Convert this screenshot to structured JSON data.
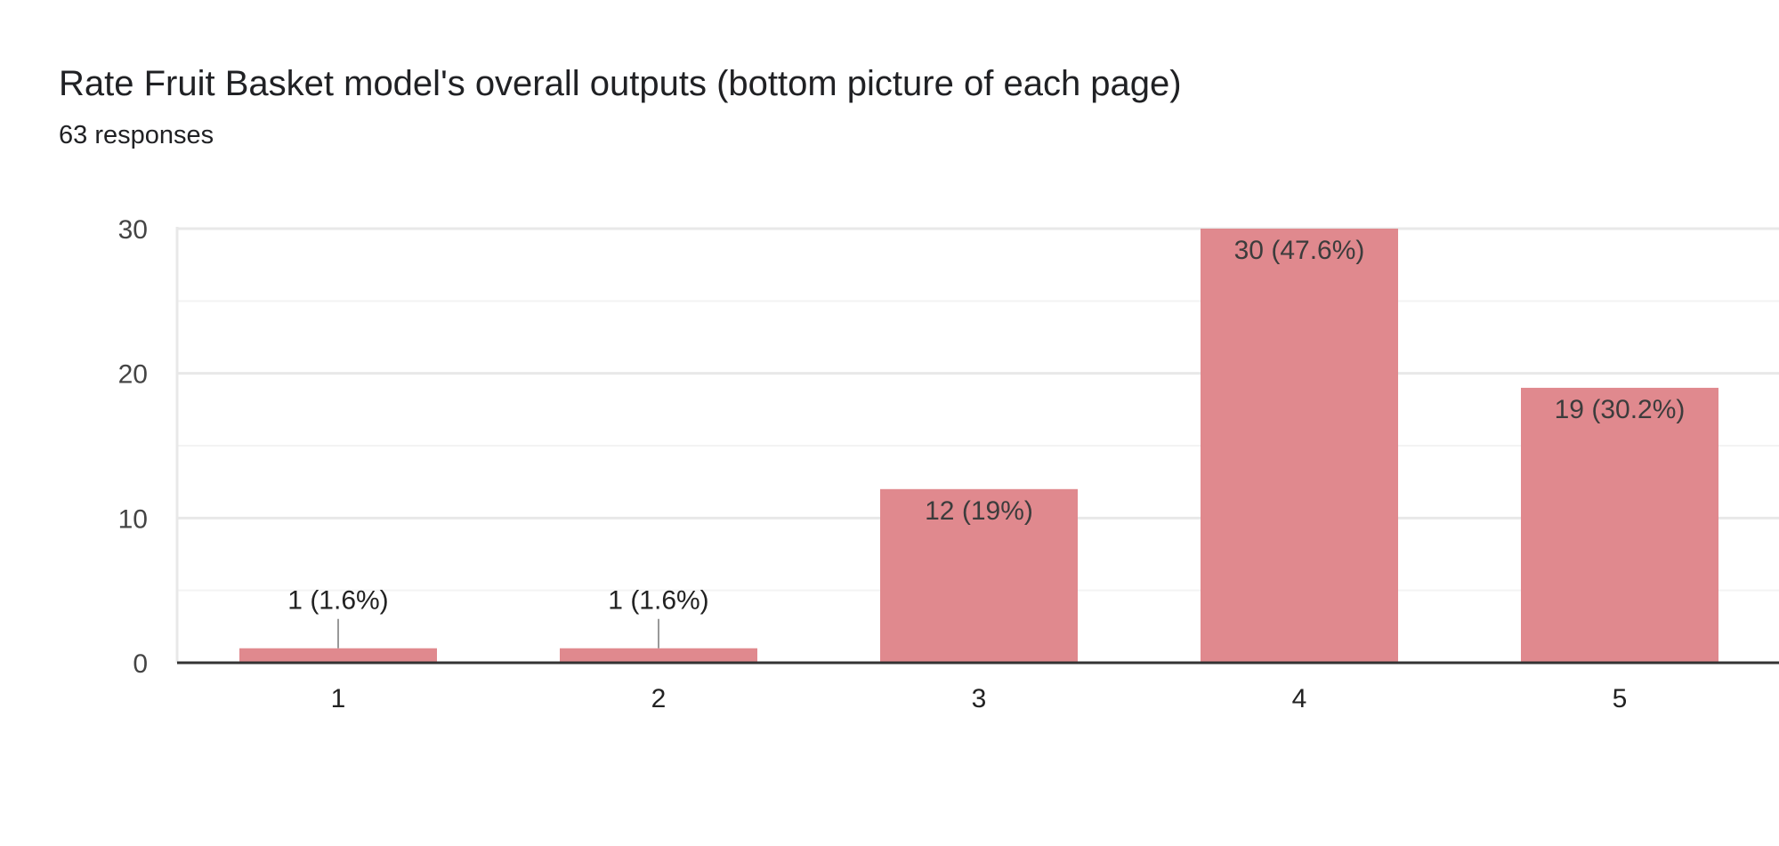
{
  "header": {
    "title": "Rate Fruit Basket model's overall outputs (bottom picture of each page)",
    "subtitle": "63 responses"
  },
  "colors": {
    "bar": "#e0898e",
    "axis": "#333333",
    "grid_major": "#e8e8e8",
    "grid_minor": "#f3f3f3",
    "tick_text": "#444444",
    "label_text": "#222222",
    "leader": "#999999"
  },
  "chart_data": {
    "type": "bar",
    "categories": [
      "1",
      "2",
      "3",
      "4",
      "5"
    ],
    "values": [
      1,
      1,
      12,
      30,
      19
    ],
    "data_labels": [
      "1 (1.6%)",
      "1 (1.6%)",
      "12 (19%)",
      "30 (47.6%)",
      "19 (30.2%)"
    ],
    "ylim": [
      0,
      30
    ],
    "yticks": [
      "0",
      "10",
      "20",
      "30"
    ],
    "grid": true
  }
}
